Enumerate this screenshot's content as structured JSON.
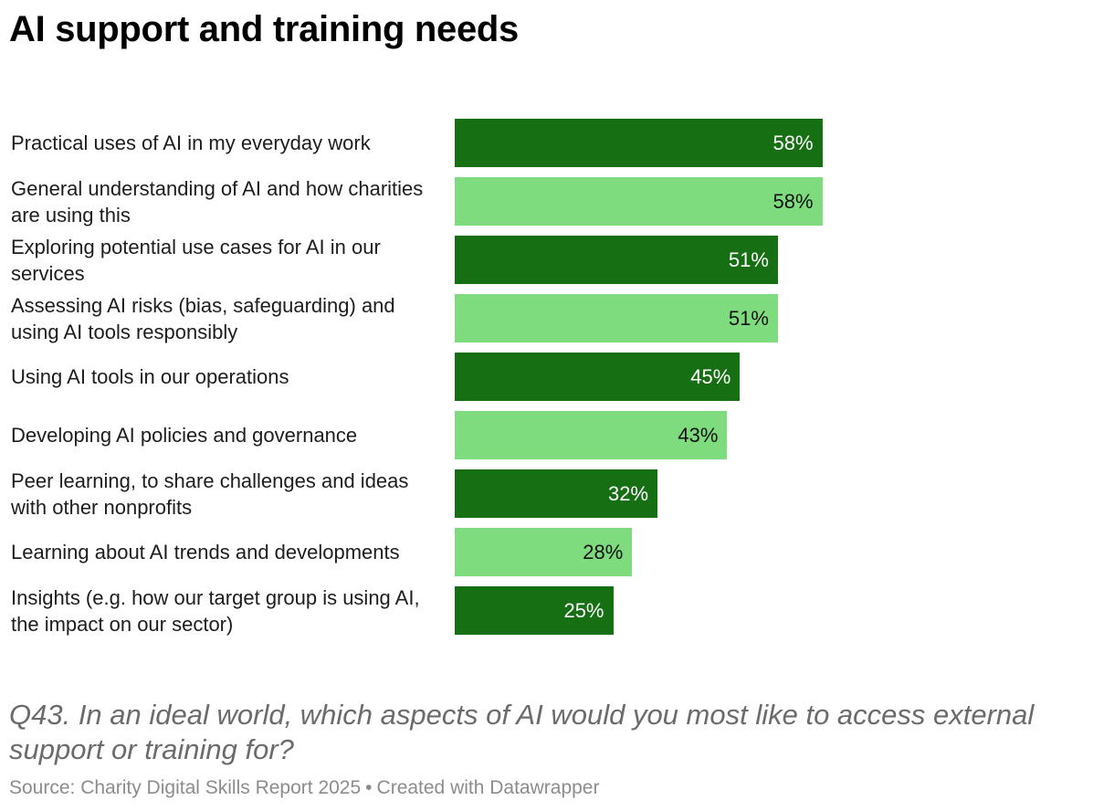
{
  "title": "AI support and training needs",
  "question": "Q43. In an ideal world, which aspects of AI would you most like to access external support or training for?",
  "footer": {
    "source": "Source: Charity Digital Skills Report 2025",
    "separator": "•",
    "credit": "Created with Datawrapper"
  },
  "colors": {
    "dark_bar": "#166f13",
    "light_bar": "#7edc7e",
    "dark_value_text": "#ffffff",
    "light_value_text": "#111111"
  },
  "chart_data": {
    "type": "bar",
    "orientation": "horizontal",
    "title": "AI support and training needs",
    "xlabel": "",
    "ylabel": "",
    "xlim": [
      0,
      100
    ],
    "unit": "%",
    "categories": [
      "Practical uses of AI in my everyday work",
      "General understanding of AI and how charities are using this",
      "Exploring potential use cases for AI in our services",
      "Assessing AI risks (bias, safeguarding) and using AI tools responsibly",
      "Using AI tools in our operations",
      "Developing AI policies and governance",
      "Peer learning, to share challenges and ideas with other nonprofits",
      "Learning about AI trends and developments",
      "Insights (e.g. how our target group is using AI, the impact on our sector)"
    ],
    "values": [
      58,
      58,
      51,
      51,
      45,
      43,
      32,
      28,
      25
    ],
    "value_labels": [
      "58%",
      "58%",
      "51%",
      "51%",
      "45%",
      "43%",
      "32%",
      "28%",
      "25%"
    ],
    "bar_colors": [
      "dark",
      "light",
      "dark",
      "light",
      "dark",
      "light",
      "dark",
      "light",
      "dark"
    ]
  }
}
